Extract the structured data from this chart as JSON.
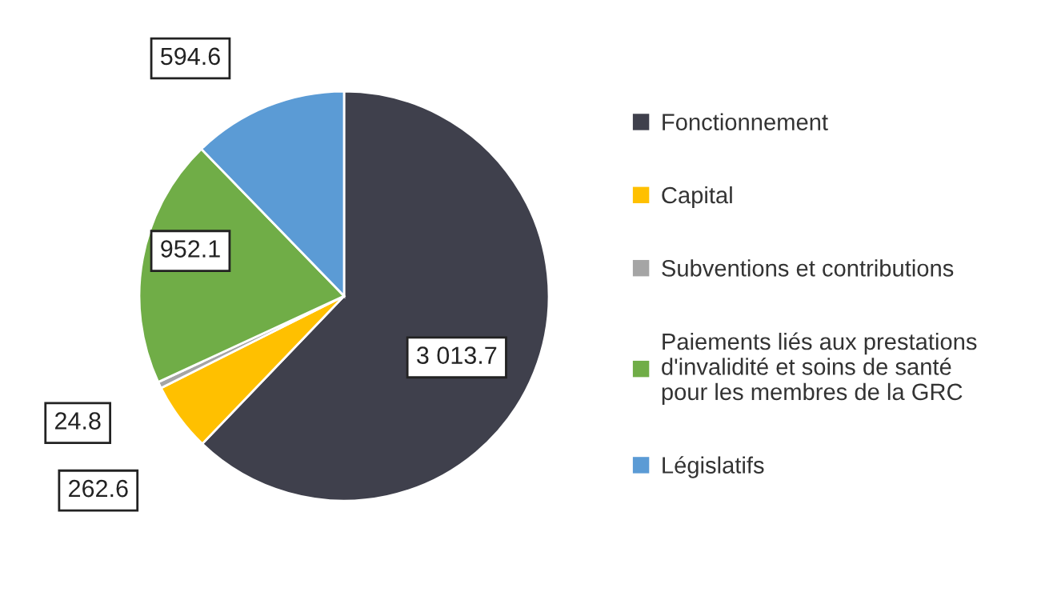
{
  "chart_data": {
    "type": "pie",
    "categories": [
      "Fonctionnement",
      "Capital",
      "Subventions et contributions",
      "Paiements liés aux prestations d'invalidité et soins de santé pour les membres de la GRC",
      "Législatifs"
    ],
    "values": [
      3013.7,
      262.6,
      24.8,
      952.1,
      594.6
    ],
    "value_labels": [
      "3 013.7",
      "262.6",
      "24.8",
      "952.1",
      "594.6"
    ],
    "colors": [
      "#3f404c",
      "#ffc000",
      "#a5a5a5",
      "#70ad47",
      "#5b9bd5"
    ],
    "legend": "right"
  }
}
